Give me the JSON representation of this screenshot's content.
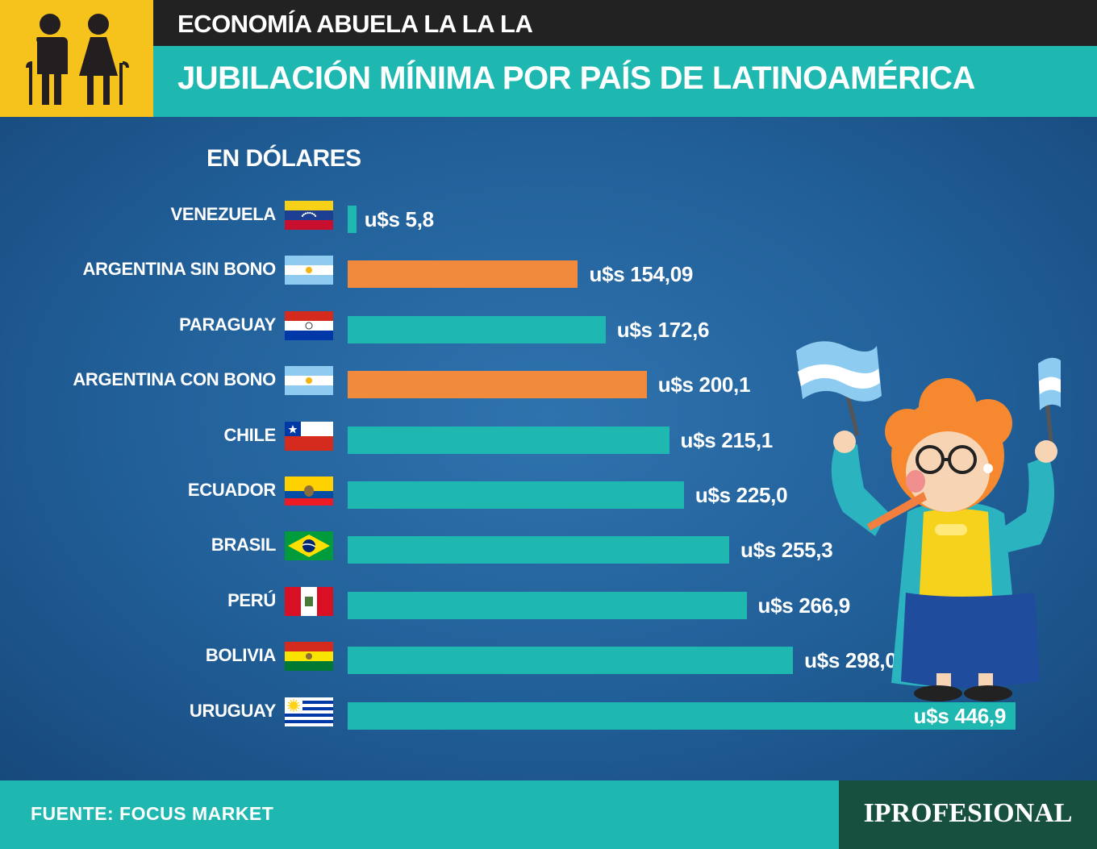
{
  "header": {
    "kicker": "ECONOMÍA ABUELA LA LA LA",
    "title": "JUBILACIÓN MÍNIMA POR PAÍS DE LATINOAMÉRICA",
    "icon": "elderly-couple-icon"
  },
  "colors": {
    "teal": "#1fb8b1",
    "orange": "#f28a3e",
    "yellow": "#f6c21c",
    "dark": "#222222",
    "footer_brand": "#17503f"
  },
  "chart_data": {
    "type": "bar",
    "orientation": "horizontal",
    "subtitle": "EN DÓLARES",
    "categories": [
      "VENEZUELA",
      "ARGENTINA SIN BONO",
      "PARAGUAY",
      "ARGENTINA CON BONO",
      "CHILE",
      "ECUADOR",
      "BRASIL",
      "PERÚ",
      "BOLIVIA",
      "URUGUAY"
    ],
    "values": [
      5.8,
      154.09,
      172.6,
      200.1,
      215.1,
      225.0,
      255.3,
      266.9,
      298.0,
      446.9
    ],
    "value_labels": [
      "u$s 5,8",
      "u$s 154,09",
      "u$s 172,6",
      "u$s 200,1",
      "u$s 215,1",
      "u$s 225,0",
      "u$s 255,3",
      "u$s 266,9",
      "u$s 298,0",
      "u$s 446,9"
    ],
    "highlight": [
      "ARGENTINA SIN BONO",
      "ARGENTINA CON BONO"
    ],
    "flags": [
      "venezuela-flag-icon",
      "argentina-flag-icon",
      "paraguay-flag-icon",
      "argentina-flag-icon",
      "chile-flag-icon",
      "ecuador-flag-icon",
      "brazil-flag-icon",
      "peru-flag-icon",
      "bolivia-flag-icon",
      "uruguay-flag-icon"
    ],
    "xlim": [
      0,
      446.9
    ],
    "grid": false
  },
  "illustration": "grandmother-with-argentina-flags",
  "footer": {
    "source": "FUENTE: FOCUS MARKET",
    "brand": "IPROFESIONAL"
  }
}
